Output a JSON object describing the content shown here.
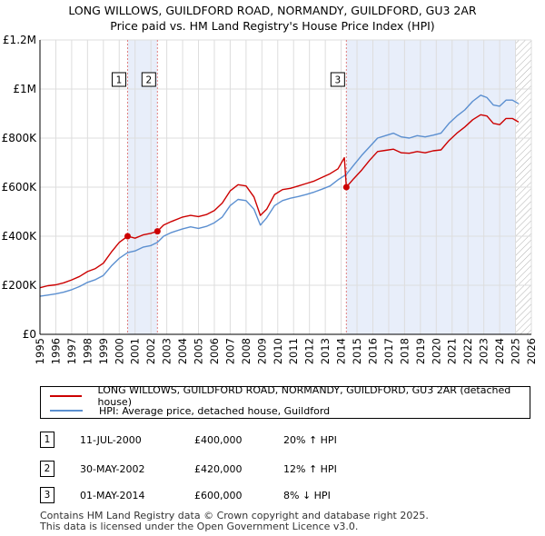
{
  "chart_data": {
    "type": "line",
    "title": "LONG WILLOWS, GUILDFORD ROAD, NORMANDY, GUILDFORD, GU3 2AR",
    "subtitle": "Price paid vs. HM Land Registry's House Price Index (HPI)",
    "xlim": [
      1995,
      2026
    ],
    "ylim": [
      0,
      1200000
    ],
    "x_ticks": [
      1995,
      1996,
      1997,
      1998,
      1999,
      2000,
      2001,
      2002,
      2003,
      2004,
      2005,
      2006,
      2007,
      2008,
      2009,
      2010,
      2011,
      2012,
      2013,
      2014,
      2015,
      2016,
      2017,
      2018,
      2019,
      2020,
      2021,
      2022,
      2023,
      2024,
      2025,
      2026
    ],
    "y_ticks": [
      {
        "value": 0,
        "label": "£0"
      },
      {
        "value": 200000,
        "label": "£200K"
      },
      {
        "value": 400000,
        "label": "£400K"
      },
      {
        "value": 600000,
        "label": "£600K"
      },
      {
        "value": 800000,
        "label": "£800K"
      },
      {
        "value": 1000000,
        "label": "£1M"
      },
      {
        "value": 1200000,
        "label": "£1.2M"
      }
    ],
    "grid": true,
    "series": [
      {
        "name": "LONG WILLOWS, GUILDFORD ROAD, NORMANDY, GUILDFORD, GU3 2AR (detached house)",
        "color": "#cc0000",
        "points": [
          [
            1995.0,
            190000
          ],
          [
            1995.5,
            198000
          ],
          [
            1996.0,
            202000
          ],
          [
            1996.5,
            210000
          ],
          [
            1997.0,
            222000
          ],
          [
            1997.5,
            236000
          ],
          [
            1998.0,
            256000
          ],
          [
            1998.5,
            268000
          ],
          [
            1999.0,
            290000
          ],
          [
            1999.5,
            335000
          ],
          [
            2000.0,
            375000
          ],
          [
            2000.53,
            400000
          ],
          [
            2001.0,
            392000
          ],
          [
            2001.5,
            405000
          ],
          [
            2002.0,
            412000
          ],
          [
            2002.41,
            420000
          ],
          [
            2002.8,
            445000
          ],
          [
            2003.3,
            460000
          ],
          [
            2004.0,
            478000
          ],
          [
            2004.5,
            485000
          ],
          [
            2005.0,
            480000
          ],
          [
            2005.5,
            488000
          ],
          [
            2006.0,
            505000
          ],
          [
            2006.5,
            535000
          ],
          [
            2007.0,
            585000
          ],
          [
            2007.5,
            610000
          ],
          [
            2008.0,
            605000
          ],
          [
            2008.5,
            560000
          ],
          [
            2008.9,
            485000
          ],
          [
            2009.3,
            510000
          ],
          [
            2009.8,
            570000
          ],
          [
            2010.3,
            590000
          ],
          [
            2010.8,
            595000
          ],
          [
            2011.3,
            605000
          ],
          [
            2011.8,
            615000
          ],
          [
            2012.3,
            625000
          ],
          [
            2012.8,
            640000
          ],
          [
            2013.3,
            655000
          ],
          [
            2013.8,
            675000
          ],
          [
            2014.2,
            720000
          ],
          [
            2014.33,
            600000
          ],
          [
            2014.8,
            635000
          ],
          [
            2015.3,
            670000
          ],
          [
            2015.8,
            710000
          ],
          [
            2016.3,
            745000
          ],
          [
            2016.8,
            750000
          ],
          [
            2017.3,
            755000
          ],
          [
            2017.8,
            740000
          ],
          [
            2018.3,
            738000
          ],
          [
            2018.8,
            745000
          ],
          [
            2019.3,
            740000
          ],
          [
            2019.8,
            748000
          ],
          [
            2020.3,
            752000
          ],
          [
            2020.8,
            790000
          ],
          [
            2021.3,
            820000
          ],
          [
            2021.8,
            845000
          ],
          [
            2022.3,
            875000
          ],
          [
            2022.8,
            895000
          ],
          [
            2023.2,
            890000
          ],
          [
            2023.6,
            860000
          ],
          [
            2024.0,
            855000
          ],
          [
            2024.4,
            880000
          ],
          [
            2024.8,
            880000
          ],
          [
            2025.2,
            865000
          ]
        ]
      },
      {
        "name": "HPI: Average price, detached house, Guildford",
        "color": "#5b8fd0",
        "points": [
          [
            1995.0,
            155000
          ],
          [
            1995.5,
            160000
          ],
          [
            1996.0,
            165000
          ],
          [
            1996.5,
            172000
          ],
          [
            1997.0,
            182000
          ],
          [
            1997.5,
            195000
          ],
          [
            1998.0,
            212000
          ],
          [
            1998.5,
            223000
          ],
          [
            1999.0,
            240000
          ],
          [
            1999.5,
            278000
          ],
          [
            2000.0,
            310000
          ],
          [
            2000.53,
            333000
          ],
          [
            2001.0,
            340000
          ],
          [
            2001.5,
            355000
          ],
          [
            2002.0,
            362000
          ],
          [
            2002.41,
            375000
          ],
          [
            2002.8,
            400000
          ],
          [
            2003.3,
            415000
          ],
          [
            2004.0,
            430000
          ],
          [
            2004.5,
            438000
          ],
          [
            2005.0,
            432000
          ],
          [
            2005.5,
            440000
          ],
          [
            2006.0,
            455000
          ],
          [
            2006.5,
            478000
          ],
          [
            2007.0,
            525000
          ],
          [
            2007.5,
            550000
          ],
          [
            2008.0,
            545000
          ],
          [
            2008.5,
            510000
          ],
          [
            2008.9,
            445000
          ],
          [
            2009.3,
            475000
          ],
          [
            2009.8,
            525000
          ],
          [
            2010.3,
            545000
          ],
          [
            2010.8,
            555000
          ],
          [
            2011.3,
            562000
          ],
          [
            2011.8,
            570000
          ],
          [
            2012.3,
            580000
          ],
          [
            2012.8,
            592000
          ],
          [
            2013.3,
            605000
          ],
          [
            2013.8,
            630000
          ],
          [
            2014.33,
            652000
          ],
          [
            2014.8,
            690000
          ],
          [
            2015.3,
            730000
          ],
          [
            2015.8,
            765000
          ],
          [
            2016.3,
            800000
          ],
          [
            2016.8,
            810000
          ],
          [
            2017.3,
            820000
          ],
          [
            2017.8,
            805000
          ],
          [
            2018.3,
            800000
          ],
          [
            2018.8,
            810000
          ],
          [
            2019.3,
            805000
          ],
          [
            2019.8,
            812000
          ],
          [
            2020.3,
            820000
          ],
          [
            2020.8,
            860000
          ],
          [
            2021.3,
            890000
          ],
          [
            2021.8,
            915000
          ],
          [
            2022.3,
            950000
          ],
          [
            2022.8,
            975000
          ],
          [
            2023.2,
            965000
          ],
          [
            2023.6,
            935000
          ],
          [
            2024.0,
            930000
          ],
          [
            2024.4,
            955000
          ],
          [
            2024.8,
            955000
          ],
          [
            2025.2,
            940000
          ]
        ]
      }
    ],
    "sales": [
      {
        "id": "1",
        "x": 2000.53,
        "price": 400000,
        "date": "11-JUL-2000",
        "price_label": "£400,000",
        "hpi": "20% ↑ HPI"
      },
      {
        "id": "2",
        "x": 2002.41,
        "price": 420000,
        "date": "30-MAY-2002",
        "price_label": "£420,000",
        "hpi": "12% ↑ HPI"
      },
      {
        "id": "3",
        "x": 2014.33,
        "price": 600000,
        "date": "01-MAY-2014",
        "price_label": "£600,000",
        "hpi": "8% ↓ HPI"
      }
    ],
    "shaded_ranges": [
      [
        2000.53,
        2002.41
      ],
      [
        2014.33,
        2025.0
      ]
    ],
    "hatched_from": 2025.0
  },
  "footer": {
    "line1": "Contains HM Land Registry data © Crown copyright and database right 2025.",
    "line2": "This data is licensed under the Open Government Licence v3.0."
  }
}
